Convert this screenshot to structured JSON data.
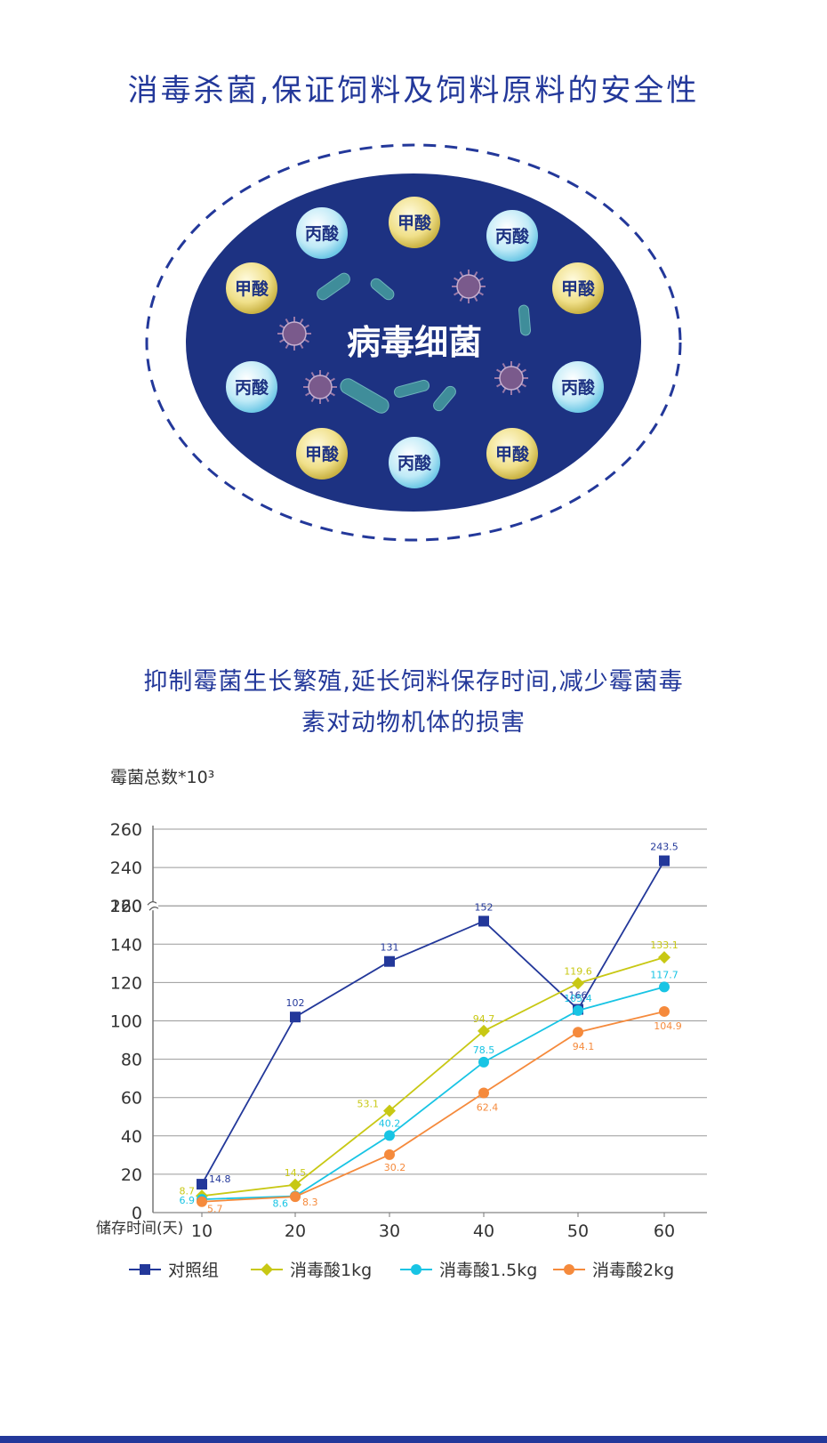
{
  "section1": {
    "title": "消毒杀菌,保证饲料及饲料原料的安全性",
    "center_label": "病毒细菌",
    "acids": [
      "丙酸",
      "甲酸",
      "丙酸",
      "甲酸",
      "甲酸",
      "丙酸",
      "丙酸",
      "甲酸",
      "丙酸",
      "甲酸"
    ],
    "colors": {
      "ellipse": "#1d3282",
      "dash": "#23389a"
    }
  },
  "section2": {
    "title_line1": "抑制霉菌生长繁殖,延长饲料保存时间,减少霉菌毒",
    "title_line2": "素对动物机体的损害"
  },
  "chart_data": {
    "type": "line",
    "ylabel": "霉菌总数*10³",
    "xlabel": "储存时间(天)",
    "x": [
      10,
      20,
      30,
      40,
      50,
      60
    ],
    "yticks": [
      0,
      20,
      40,
      60,
      80,
      100,
      120,
      140,
      160,
      220,
      240,
      260
    ],
    "axis_break": [
      160,
      220
    ],
    "series": [
      {
        "name": "对照组",
        "values": [
          14.8,
          102,
          131,
          152,
          166,
          243.5
        ],
        "color": "#23389a",
        "marker": "square"
      },
      {
        "name": "消毒酸1kg",
        "values": [
          8.7,
          14.5,
          53.1,
          94.7,
          119.6,
          133.1
        ],
        "color": "#c8c814",
        "marker": "diamond"
      },
      {
        "name": "消毒酸1.5kg",
        "values": [
          6.9,
          8.6,
          40.2,
          78.5,
          105.4,
          117.7
        ],
        "color": "#18c4e4",
        "marker": "circle"
      },
      {
        "name": "消毒酸2kg",
        "values": [
          5.7,
          8.3,
          30.2,
          62.4,
          94.1,
          104.9
        ],
        "color": "#f58a3c",
        "marker": "circle"
      }
    ],
    "grid": true,
    "legend": "bottom"
  }
}
